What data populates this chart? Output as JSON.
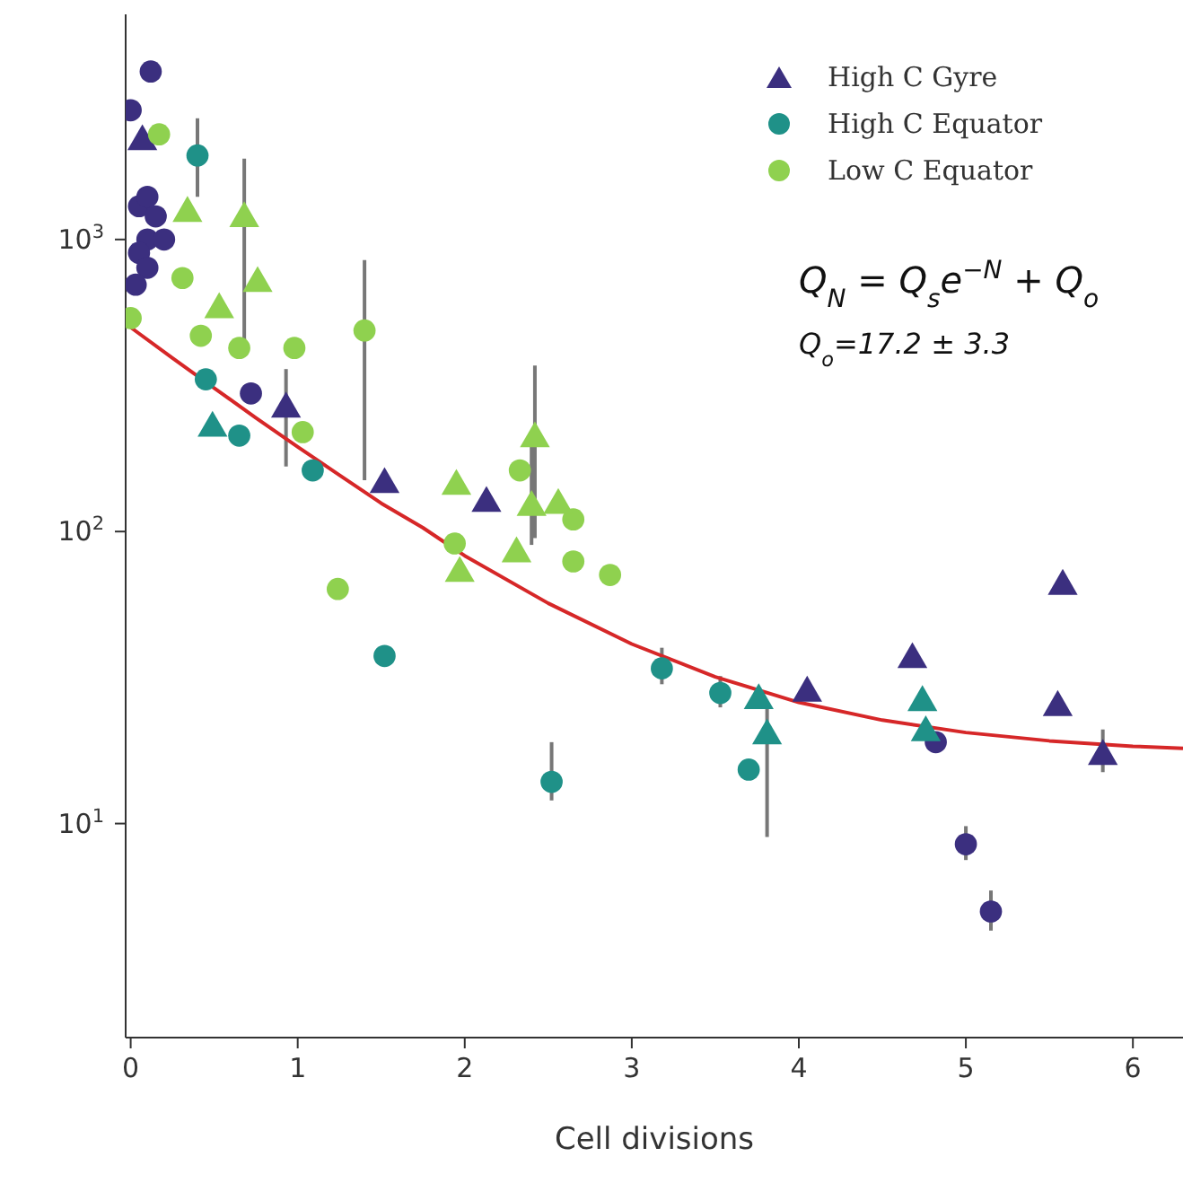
{
  "chart_data": {
    "type": "scatter",
    "xlabel": "Cell divisions",
    "log": "y",
    "xlim": [
      -0.03,
      6.3
    ],
    "xticks": [
      0,
      1,
      2,
      3,
      4,
      5,
      6
    ],
    "ylim": [
      1.85,
      5900
    ],
    "yticks": [
      {
        "value": 10,
        "label": "10$^{1}$"
      },
      {
        "value": 100,
        "label": "10$^{2}$"
      },
      {
        "value": 1000,
        "label": "10$^{3}$"
      }
    ],
    "legend": "top right",
    "annotations": [
      "Q$_{N}$ = Q$_{s}$e$^{−N}$ + Q$_{o}$",
      "Q$_{o}$=17.2 ± 3.3"
    ],
    "series": [
      {
        "name": "High C Gyre",
        "color": "#3b2f7f",
        "marker": "triangle",
        "x": [
          0.07,
          1.52,
          2.13,
          0.93,
          4.05,
          4.68,
          5.58,
          5.55,
          5.82
        ],
        "values": [
          2165,
          145,
          125,
          263,
          28,
          36.5,
          65,
          25,
          17
        ],
        "errors": [
          null,
          null,
          null,
          [
            167,
            360
          ],
          null,
          null,
          null,
          null,
          [
            15,
            21
          ]
        ]
      },
      {
        "color": "#3b2f7f",
        "marker": "circle",
        "x": [
          0.12,
          0,
          0.05,
          0.1,
          0.15,
          0.1,
          0.05,
          0.1,
          0.03,
          0.2,
          0.72,
          4.82,
          5.0,
          5.15
        ],
        "values": [
          3760,
          2770,
          1300,
          1400,
          1200,
          1000,
          900,
          800,
          700,
          1000,
          297,
          19,
          8.5,
          5
        ],
        "errors": [
          null,
          null,
          null,
          null,
          null,
          null,
          null,
          null,
          null,
          null,
          null,
          null,
          [
            7.5,
            9.8
          ],
          [
            4.3,
            5.9
          ]
        ]
      },
      {
        "name": "High C Equator",
        "color": "#1f9188",
        "marker": "circle",
        "x": [
          0.4,
          0.45,
          0.65,
          1.09,
          1.52,
          2.52,
          3.18,
          3.53,
          3.7
        ],
        "values": [
          1940,
          332,
          213,
          162,
          37.5,
          13.9,
          34,
          28,
          15.3
        ],
        "errors": [
          [
            1400,
            2600
          ],
          null,
          null,
          null,
          null,
          [
            12,
            19
          ],
          [
            30,
            40
          ],
          [
            25,
            32
          ],
          null
        ]
      },
      {
        "color": "#1f9188",
        "marker": "triangle",
        "x": [
          0.49,
          3.76,
          3.81,
          4.74,
          4.76
        ],
        "values": [
          226,
          26.4,
          20,
          26,
          20.5
        ],
        "errors": [
          null,
          null,
          [
            9,
            26
          ],
          null,
          null
        ]
      },
      {
        "name": "Low C Equator",
        "color": "#8fd14f",
        "marker": "circle",
        "x": [
          0.17,
          0.31,
          0.42,
          0.65,
          0.98,
          1.4,
          1.03,
          1.24,
          2.33,
          2.65,
          2.65,
          2.87,
          1.94,
          0
        ],
        "values": [
          2290,
          738,
          468,
          425,
          425,
          488,
          219,
          63.6,
          162,
          110,
          79,
          71,
          91,
          538
        ],
        "errors": [
          null,
          null,
          null,
          null,
          null,
          [
            150,
            850
          ],
          null,
          null,
          null,
          null,
          null,
          null,
          null,
          null
        ]
      },
      {
        "color": "#8fd14f",
        "marker": "triangle",
        "x": [
          0.68,
          0.34,
          0.76,
          0.53,
          1.95,
          1.97,
          2.42,
          2.4,
          2.56,
          2.31
        ],
        "values": [
          1180,
          1230,
          708,
          576,
          143,
          72,
          208,
          121,
          123,
          84
        ],
        "errors": [
          [
            400,
            1890
          ],
          null,
          null,
          null,
          null,
          null,
          [
            95,
            370
          ],
          [
            90,
            200
          ],
          null,
          null
        ]
      },
      {
        "type": "line",
        "color": "#d62728",
        "line_style": "solid",
        "marker": "none",
        "x": [
          0,
          0.25,
          0.5,
          0.75,
          1,
          1.25,
          1.5,
          1.75,
          2,
          2.5,
          3,
          3.5,
          4,
          4.5,
          5,
          5.5,
          6,
          6.3
        ],
        "values": [
          500,
          393,
          310,
          245,
          195,
          156,
          125,
          103,
          82.6,
          56.8,
          41.2,
          31.8,
          26,
          22.6,
          20.5,
          19.2,
          18.4,
          18.1
        ]
      }
    ]
  }
}
